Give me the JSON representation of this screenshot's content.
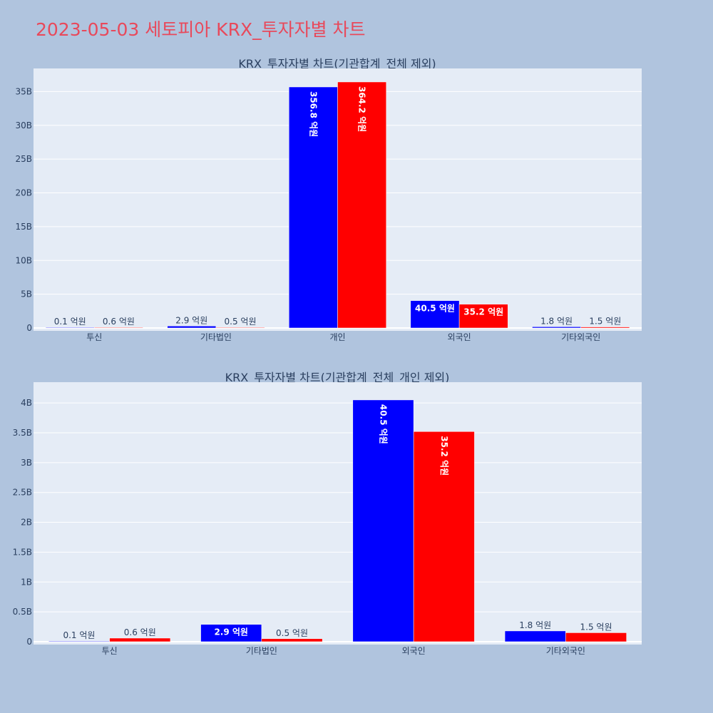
{
  "page": {
    "title": "2023-05-03 세토피아 KRX_투자자별 차트"
  },
  "colors": {
    "background": "#b0c4de",
    "plot_bg": "#e5ecf6",
    "title": "#e8495b",
    "series_a": "#0000ff",
    "series_b": "#ff0000",
    "text": "#2a3f5f"
  },
  "chart_data": [
    {
      "type": "bar",
      "title": "KRX_투자자별 차트(기관합계_전체 제외)",
      "categories": [
        "투신",
        "기타법인",
        "개인",
        "외국인",
        "기타외국인"
      ],
      "series": [
        {
          "color": "#0000ff",
          "values": [
            10000000,
            290000000,
            35680000000,
            4050000000,
            180000000
          ],
          "labels": [
            "0.1 억원",
            "2.9 억원",
            "356.8 억원",
            "40.5 억원",
            "1.8 억원"
          ]
        },
        {
          "color": "#ff0000",
          "values": [
            60000000,
            50000000,
            36420000000,
            3520000000,
            150000000
          ],
          "labels": [
            "0.6 억원",
            "0.5 억원",
            "364.2 억원",
            "35.2 억원",
            "1.5 억원"
          ]
        }
      ],
      "ylim": [
        0,
        38000000000
      ],
      "yticks": [
        0,
        5000000000,
        10000000000,
        15000000000,
        20000000000,
        25000000000,
        30000000000,
        35000000000
      ],
      "ytick_labels": [
        "0",
        "5B",
        "10B",
        "15B",
        "20B",
        "25B",
        "30B",
        "35B"
      ],
      "grid": true,
      "legend": "none"
    },
    {
      "type": "bar",
      "title": "KRX_투자자별 차트(기관합계_전체_개인 제외)",
      "categories": [
        "투신",
        "기타법인",
        "외국인",
        "기타외국인"
      ],
      "series": [
        {
          "color": "#0000ff",
          "values": [
            10000000,
            290000000,
            4050000000,
            180000000
          ],
          "labels": [
            "0.1 억원",
            "2.9 억원",
            "40.5 억원",
            "1.8 억원"
          ]
        },
        {
          "color": "#ff0000",
          "values": [
            60000000,
            50000000,
            3520000000,
            150000000
          ],
          "labels": [
            "0.6 억원",
            "0.5 억원",
            "35.2 억원",
            "1.5 억원"
          ]
        }
      ],
      "ylim": [
        0,
        4300000000
      ],
      "yticks": [
        0,
        500000000,
        1000000000,
        1500000000,
        2000000000,
        2500000000,
        3000000000,
        3500000000,
        4000000000
      ],
      "ytick_labels": [
        "0",
        "0.5B",
        "1B",
        "1.5B",
        "2B",
        "2.5B",
        "3B",
        "3.5B",
        "4B"
      ],
      "grid": true,
      "legend": "none"
    }
  ]
}
